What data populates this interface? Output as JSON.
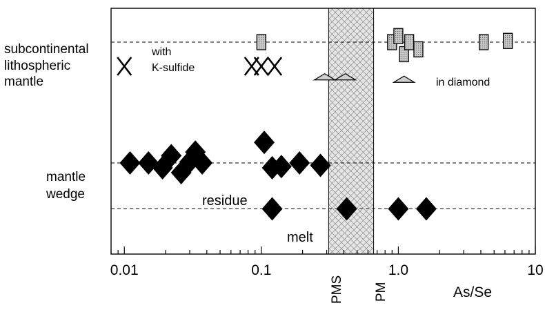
{
  "chart_data": {
    "type": "scatter",
    "x_scale": "log",
    "xlim": [
      0.008,
      10
    ],
    "x_axis_label": "As/Se",
    "x_ticks": [
      {
        "value": 0.01,
        "label": "0.01"
      },
      {
        "value": 0.1,
        "label": "0.1"
      },
      {
        "value": 1.0,
        "label": "1.0"
      },
      {
        "value": 10,
        "label": "10"
      }
    ],
    "reference_band": {
      "x_min": 0.31,
      "x_max": 0.66,
      "labels": [
        {
          "value": 0.31,
          "text": "PMS"
        },
        {
          "value": 0.66,
          "text": "PM"
        }
      ]
    },
    "rows": {
      "subcontinental": {
        "label": [
          "subcontinental",
          "lithospheric",
          "mantle"
        ]
      },
      "mantle_wedge": {
        "label": [
          "mantle",
          "wedge"
        ]
      }
    },
    "annotations": {
      "with_ksulfide": [
        "with",
        "K-sulfide"
      ],
      "in_diamond": "in diamond",
      "residue": "residue",
      "melt": "melt"
    },
    "series": [
      {
        "group": "subcontinental",
        "marker": "square",
        "points": [
          [
            0.1,
            0.0
          ],
          [
            0.9,
            0.0
          ],
          [
            1.0,
            -0.25
          ],
          [
            1.1,
            0.5
          ],
          [
            1.2,
            0.0
          ],
          [
            1.4,
            0.3
          ],
          [
            4.2,
            0.0
          ],
          [
            6.3,
            -0.05
          ]
        ]
      },
      {
        "group": "subcontinental",
        "marker": "x",
        "points": [
          [
            0.01,
            1.0
          ],
          [
            0.085,
            1.0
          ],
          [
            0.1,
            1.0
          ],
          [
            0.125,
            1.0
          ]
        ]
      },
      {
        "group": "subcontinental",
        "marker": "triangle",
        "points": [
          [
            0.29,
            1.45
          ],
          [
            0.41,
            1.45
          ],
          [
            1.1,
            1.55
          ]
        ]
      },
      {
        "group": "mantle_wedge",
        "marker": "diamond",
        "role": "residue",
        "points": [
          [
            0.011,
            0.0
          ],
          [
            0.015,
            0.0
          ],
          [
            0.019,
            0.2
          ],
          [
            0.022,
            -0.3
          ],
          [
            0.026,
            0.4
          ],
          [
            0.03,
            -0.05
          ],
          [
            0.033,
            -0.45
          ],
          [
            0.037,
            0.0
          ],
          [
            0.105,
            -0.85
          ],
          [
            0.12,
            0.2
          ],
          [
            0.14,
            0.15
          ],
          [
            0.19,
            0.0
          ],
          [
            0.27,
            0.1
          ]
        ]
      },
      {
        "group": "mantle_wedge",
        "marker": "diamond",
        "role": "melt",
        "points": [
          [
            0.12,
            1.9
          ],
          [
            0.42,
            1.9
          ],
          [
            1.0,
            1.9
          ],
          [
            1.6,
            1.9
          ]
        ]
      }
    ]
  }
}
